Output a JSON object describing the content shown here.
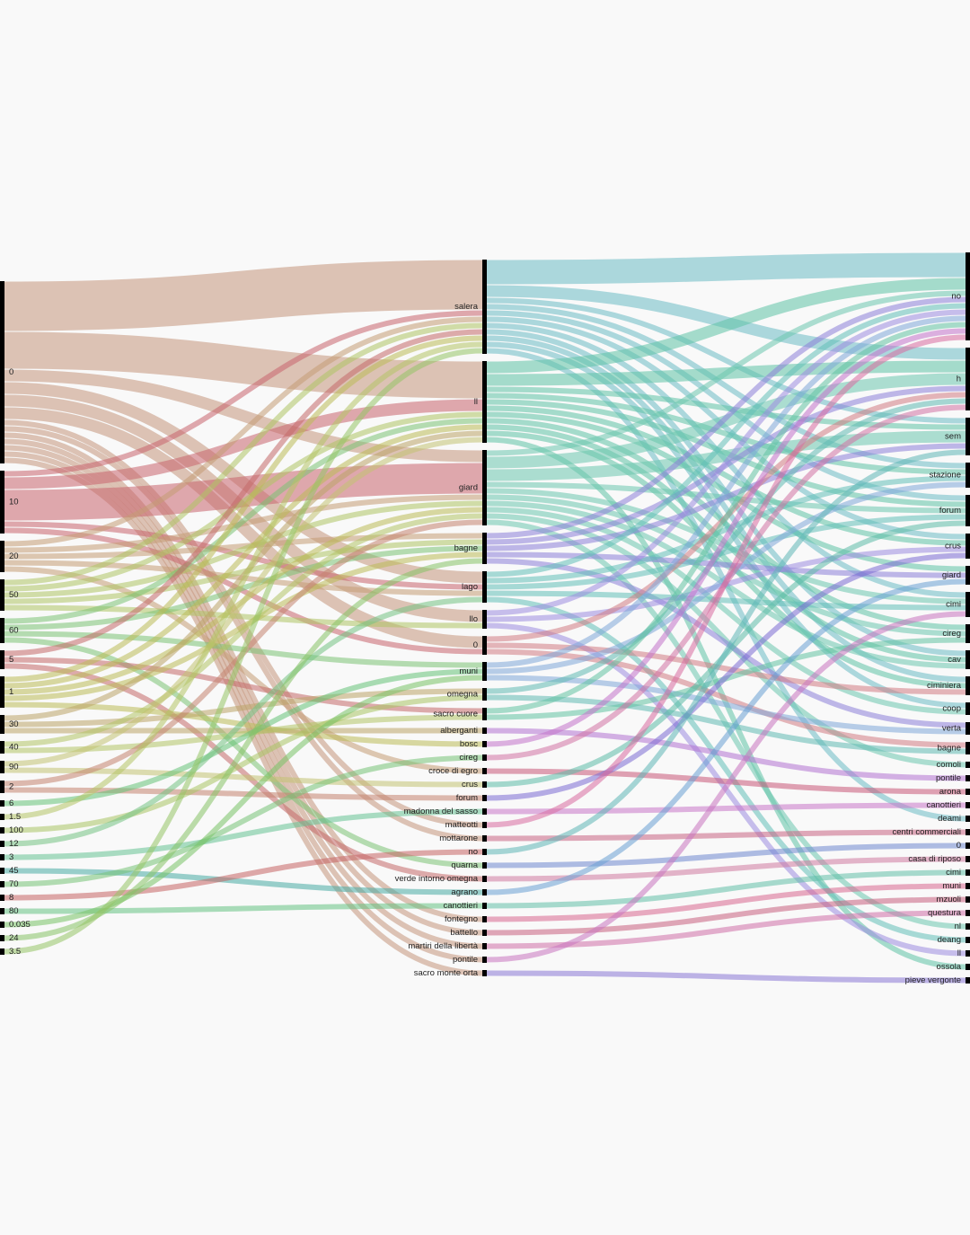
{
  "chart_data": {
    "type": "sankey",
    "layers": [
      {
        "nodes": [
          {
            "name": "0",
            "color": "#c4967c"
          },
          {
            "name": "10",
            "color": "#c8646e"
          },
          {
            "name": "20",
            "color": "#c49c74"
          },
          {
            "name": "50",
            "color": "#aec464"
          },
          {
            "name": "60",
            "color": "#7cc274"
          },
          {
            "name": "5",
            "color": "#c46a6a"
          },
          {
            "name": "1",
            "color": "#bcbc58"
          },
          {
            "name": "30",
            "color": "#bca468"
          },
          {
            "name": "40",
            "color": "#b2c466"
          },
          {
            "name": "90",
            "color": "#c2c272"
          },
          {
            "name": "2",
            "color": "#c48470"
          },
          {
            "name": "6",
            "color": "#66c278"
          },
          {
            "name": "1.5",
            "color": "#b4c466"
          },
          {
            "name": "100",
            "color": "#aac464"
          },
          {
            "name": "12",
            "color": "#74c284"
          },
          {
            "name": "3",
            "color": "#66c294"
          },
          {
            "name": "45",
            "color": "#48aca4"
          },
          {
            "name": "70",
            "color": "#76c276"
          },
          {
            "name": "8",
            "color": "#c66464"
          },
          {
            "name": "80",
            "color": "#66c284"
          },
          {
            "name": "0.035",
            "color": "#78c266"
          },
          {
            "name": "24",
            "color": "#86c266"
          },
          {
            "name": "3.5",
            "color": "#96c466"
          }
        ]
      },
      {
        "nodes": [
          {
            "name": "salera",
            "color": "#6cbcc4"
          },
          {
            "name": "ll",
            "color": "#5ec2a6"
          },
          {
            "name": "giard",
            "color": "#6cc6ae"
          },
          {
            "name": "bagne",
            "color": "#8c80d8"
          },
          {
            "name": "lago",
            "color": "#62c0b8"
          },
          {
            "name": "llo",
            "color": "#9c8ce0"
          },
          {
            "name": "0",
            "color": "#d27c84"
          },
          {
            "name": "muni",
            "color": "#80a8d8"
          },
          {
            "name": "omegna",
            "color": "#60bab2"
          },
          {
            "name": "sacro cuore",
            "color": "#62c2a2"
          },
          {
            "name": "alberganti",
            "color": "#b272d2"
          },
          {
            "name": "bosc",
            "color": "#c272ca"
          },
          {
            "name": "cireg",
            "color": "#d272a4"
          },
          {
            "name": "croce di egro",
            "color": "#c85878"
          },
          {
            "name": "crus",
            "color": "#5cbca8"
          },
          {
            "name": "forum",
            "color": "#7c6cd4"
          },
          {
            "name": "madonna del sasso",
            "color": "#c876c8"
          },
          {
            "name": "matteotti",
            "color": "#d86ca0"
          },
          {
            "name": "mottarone",
            "color": "#c86484"
          },
          {
            "name": "no",
            "color": "#5eb6b6"
          },
          {
            "name": "quarna",
            "color": "#7088d0"
          },
          {
            "name": "verde intorno omegna",
            "color": "#d07aa0"
          },
          {
            "name": "agrano",
            "color": "#6aa0d4"
          },
          {
            "name": "canottieri",
            "color": "#62c0a8"
          },
          {
            "name": "fontegno",
            "color": "#d86890"
          },
          {
            "name": "battello",
            "color": "#c86080"
          },
          {
            "name": "martiri della libertà",
            "color": "#d070a8"
          },
          {
            "name": "pontile",
            "color": "#c874c0"
          },
          {
            "name": "sacro monte orta",
            "color": "#8a78d6"
          }
        ]
      },
      {
        "nodes": [
          {
            "name": "no"
          },
          {
            "name": "h"
          },
          {
            "name": "sem"
          },
          {
            "name": "stazione"
          },
          {
            "name": "forum"
          },
          {
            "name": "crus"
          },
          {
            "name": "giard"
          },
          {
            "name": "cimi"
          },
          {
            "name": "cireg"
          },
          {
            "name": "cav"
          },
          {
            "name": "ciminiera"
          },
          {
            "name": "coop"
          },
          {
            "name": "verta"
          },
          {
            "name": "bagne"
          },
          {
            "name": "comoli"
          },
          {
            "name": "pontile"
          },
          {
            "name": "arona"
          },
          {
            "name": "canottieri"
          },
          {
            "name": "deami"
          },
          {
            "name": "centri commerciali"
          },
          {
            "name": "0"
          },
          {
            "name": "casa di riposo"
          },
          {
            "name": "cimi"
          },
          {
            "name": "muni"
          },
          {
            "name": "mzuoli"
          },
          {
            "name": "questura"
          },
          {
            "name": "nl"
          },
          {
            "name": "deang"
          },
          {
            "name": "ll"
          },
          {
            "name": "ossola"
          },
          {
            "name": "pieve vergonte"
          }
        ]
      }
    ],
    "flows": [
      [
        {
          "from": 0,
          "to": 0,
          "value": 8
        },
        {
          "from": 0,
          "to": 1,
          "value": 6
        },
        {
          "from": 0,
          "to": 2,
          "value": 2
        },
        {
          "from": 0,
          "to": 4,
          "value": 2
        },
        {
          "from": 0,
          "to": 5,
          "value": 2
        },
        {
          "from": 0,
          "to": 6,
          "value": 2
        },
        {
          "from": 0,
          "to": 17,
          "value": 1
        },
        {
          "from": 0,
          "to": 18,
          "value": 1
        },
        {
          "from": 0,
          "to": 24,
          "value": 1
        },
        {
          "from": 0,
          "to": 25,
          "value": 1
        },
        {
          "from": 0,
          "to": 26,
          "value": 1
        },
        {
          "from": 0,
          "to": 27,
          "value": 1
        },
        {
          "from": 0,
          "to": 28,
          "value": 1
        },
        {
          "from": 1,
          "to": 0,
          "value": 1
        },
        {
          "from": 1,
          "to": 1,
          "value": 2
        },
        {
          "from": 1,
          "to": 2,
          "value": 5
        },
        {
          "from": 1,
          "to": 4,
          "value": 1
        },
        {
          "from": 1,
          "to": 6,
          "value": 1
        },
        {
          "from": 2,
          "to": 0,
          "value": 1
        },
        {
          "from": 2,
          "to": 2,
          "value": 1
        },
        {
          "from": 2,
          "to": 3,
          "value": 1
        },
        {
          "from": 2,
          "to": 4,
          "value": 1
        },
        {
          "from": 2,
          "to": 13,
          "value": 1
        },
        {
          "from": 3,
          "to": 0,
          "value": 1
        },
        {
          "from": 3,
          "to": 1,
          "value": 1
        },
        {
          "from": 3,
          "to": 2,
          "value": 1
        },
        {
          "from": 3,
          "to": 3,
          "value": 1
        },
        {
          "from": 3,
          "to": 5,
          "value": 1
        },
        {
          "from": 4,
          "to": 1,
          "value": 1
        },
        {
          "from": 4,
          "to": 3,
          "value": 1
        },
        {
          "from": 4,
          "to": 7,
          "value": 1
        },
        {
          "from": 4,
          "to": 20,
          "value": 1
        },
        {
          "from": 5,
          "to": 0,
          "value": 1
        },
        {
          "from": 5,
          "to": 9,
          "value": 1
        },
        {
          "from": 5,
          "to": 21,
          "value": 1
        },
        {
          "from": 6,
          "to": 0,
          "value": 1
        },
        {
          "from": 6,
          "to": 1,
          "value": 1
        },
        {
          "from": 6,
          "to": 2,
          "value": 1
        },
        {
          "from": 6,
          "to": 3,
          "value": 1
        },
        {
          "from": 6,
          "to": 11,
          "value": 1
        },
        {
          "from": 7,
          "to": 1,
          "value": 1
        },
        {
          "from": 7,
          "to": 8,
          "value": 1
        },
        {
          "from": 7,
          "to": 10,
          "value": 1
        },
        {
          "from": 8,
          "to": 2,
          "value": 1
        },
        {
          "from": 8,
          "to": 9,
          "value": 1
        },
        {
          "from": 9,
          "to": 1,
          "value": 1
        },
        {
          "from": 9,
          "to": 14,
          "value": 1
        },
        {
          "from": 10,
          "to": 2,
          "value": 1
        },
        {
          "from": 10,
          "to": 15,
          "value": 1
        },
        {
          "from": 11,
          "to": 7,
          "value": 1
        },
        {
          "from": 12,
          "to": 0,
          "value": 1
        },
        {
          "from": 13,
          "to": 8,
          "value": 1
        },
        {
          "from": 14,
          "to": 4,
          "value": 1
        },
        {
          "from": 15,
          "to": 16,
          "value": 1
        },
        {
          "from": 16,
          "to": 22,
          "value": 1
        },
        {
          "from": 17,
          "to": 12,
          "value": 1
        },
        {
          "from": 18,
          "to": 19,
          "value": 1
        },
        {
          "from": 19,
          "to": 23,
          "value": 1
        },
        {
          "from": 20,
          "to": 7,
          "value": 1
        },
        {
          "from": 21,
          "to": 3,
          "value": 1
        },
        {
          "from": 22,
          "to": 0,
          "value": 1
        }
      ],
      [
        {
          "from": 0,
          "to": 0,
          "value": 4
        },
        {
          "from": 0,
          "to": 1,
          "value": 2
        },
        {
          "from": 0,
          "to": 2,
          "value": 1
        },
        {
          "from": 0,
          "to": 3,
          "value": 1
        },
        {
          "from": 0,
          "to": 4,
          "value": 1
        },
        {
          "from": 0,
          "to": 5,
          "value": 1
        },
        {
          "from": 0,
          "to": 7,
          "value": 1
        },
        {
          "from": 0,
          "to": 9,
          "value": 1
        },
        {
          "from": 0,
          "to": 10,
          "value": 1
        },
        {
          "from": 0,
          "to": 11,
          "value": 1
        },
        {
          "from": 0,
          "to": 18,
          "value": 1
        },
        {
          "from": 1,
          "to": 0,
          "value": 2
        },
        {
          "from": 1,
          "to": 1,
          "value": 2
        },
        {
          "from": 1,
          "to": 2,
          "value": 1
        },
        {
          "from": 1,
          "to": 3,
          "value": 1
        },
        {
          "from": 1,
          "to": 4,
          "value": 1
        },
        {
          "from": 1,
          "to": 5,
          "value": 1
        },
        {
          "from": 1,
          "to": 6,
          "value": 1
        },
        {
          "from": 1,
          "to": 8,
          "value": 1
        },
        {
          "from": 1,
          "to": 9,
          "value": 1
        },
        {
          "from": 1,
          "to": 10,
          "value": 1
        },
        {
          "from": 1,
          "to": 29,
          "value": 1
        },
        {
          "from": 2,
          "to": 0,
          "value": 1
        },
        {
          "from": 2,
          "to": 1,
          "value": 2
        },
        {
          "from": 2,
          "to": 2,
          "value": 2
        },
        {
          "from": 2,
          "to": 4,
          "value": 1
        },
        {
          "from": 2,
          "to": 7,
          "value": 1
        },
        {
          "from": 2,
          "to": 8,
          "value": 1
        },
        {
          "from": 2,
          "to": 9,
          "value": 1
        },
        {
          "from": 2,
          "to": 11,
          "value": 1
        },
        {
          "from": 2,
          "to": 14,
          "value": 1
        },
        {
          "from": 2,
          "to": 26,
          "value": 1
        },
        {
          "from": 3,
          "to": 0,
          "value": 1
        },
        {
          "from": 3,
          "to": 1,
          "value": 1
        },
        {
          "from": 3,
          "to": 2,
          "value": 1
        },
        {
          "from": 3,
          "to": 6,
          "value": 1
        },
        {
          "from": 3,
          "to": 12,
          "value": 1
        },
        {
          "from": 4,
          "to": 0,
          "value": 1
        },
        {
          "from": 4,
          "to": 3,
          "value": 1
        },
        {
          "from": 4,
          "to": 4,
          "value": 1
        },
        {
          "from": 4,
          "to": 7,
          "value": 1
        },
        {
          "from": 4,
          "to": 27,
          "value": 1
        },
        {
          "from": 5,
          "to": 0,
          "value": 1
        },
        {
          "from": 5,
          "to": 5,
          "value": 1
        },
        {
          "from": 5,
          "to": 28,
          "value": 1
        },
        {
          "from": 6,
          "to": 1,
          "value": 1
        },
        {
          "from": 6,
          "to": 13,
          "value": 1
        },
        {
          "from": 6,
          "to": 10,
          "value": 1
        },
        {
          "from": 7,
          "to": 0,
          "value": 1
        },
        {
          "from": 7,
          "to": 3,
          "value": 1
        },
        {
          "from": 7,
          "to": 12,
          "value": 1
        },
        {
          "from": 8,
          "to": 1,
          "value": 1
        },
        {
          "from": 8,
          "to": 13,
          "value": 1
        },
        {
          "from": 9,
          "to": 0,
          "value": 1
        },
        {
          "from": 9,
          "to": 8,
          "value": 1
        },
        {
          "from": 10,
          "to": 15,
          "value": 1
        },
        {
          "from": 11,
          "to": 0,
          "value": 1
        },
        {
          "from": 12,
          "to": 1,
          "value": 1
        },
        {
          "from": 13,
          "to": 16,
          "value": 1
        },
        {
          "from": 14,
          "to": 4,
          "value": 1
        },
        {
          "from": 15,
          "to": 5,
          "value": 1
        },
        {
          "from": 16,
          "to": 17,
          "value": 1
        },
        {
          "from": 17,
          "to": 0,
          "value": 1
        },
        {
          "from": 18,
          "to": 19,
          "value": 1
        },
        {
          "from": 19,
          "to": 2,
          "value": 1
        },
        {
          "from": 20,
          "to": 20,
          "value": 1
        },
        {
          "from": 21,
          "to": 21,
          "value": 1
        },
        {
          "from": 22,
          "to": 6,
          "value": 1
        },
        {
          "from": 23,
          "to": 22,
          "value": 1
        },
        {
          "from": 24,
          "to": 23,
          "value": 1
        },
        {
          "from": 25,
          "to": 24,
          "value": 1
        },
        {
          "from": 26,
          "to": 25,
          "value": 1
        },
        {
          "from": 27,
          "to": 7,
          "value": 1
        },
        {
          "from": 28,
          "to": 30,
          "value": 1
        }
      ]
    ]
  }
}
